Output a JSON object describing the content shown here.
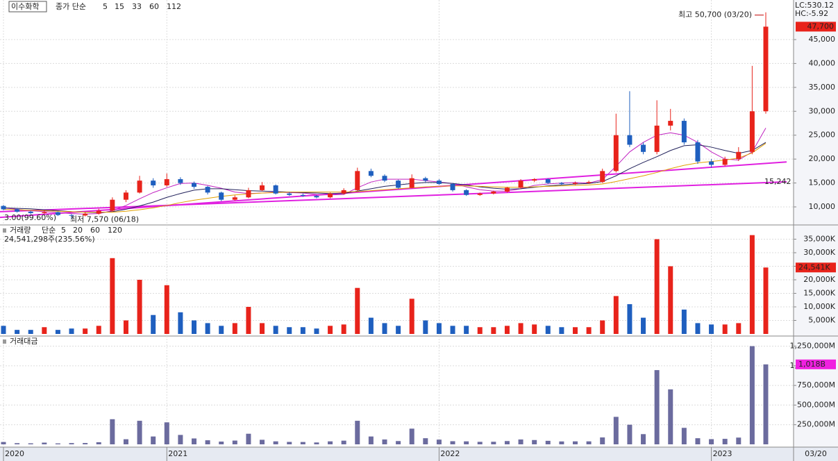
{
  "chart_data": [
    {
      "type": "candlestick",
      "title": "이수화학",
      "legend_prefix": "종가 단순",
      "ma_legend": [
        {
          "label": "5",
          "color": "#c020c0"
        },
        {
          "label": "15",
          "color": "#20205a"
        },
        {
          "label": "33",
          "color": "#d4a000"
        },
        {
          "label": "60",
          "color": "#2e8b2e"
        },
        {
          "label": "112",
          "color": "#888888"
        }
      ],
      "up_color": "#e8231b",
      "down_color": "#1f5fbf",
      "open": [
        10200,
        9500,
        9000,
        8700,
        8900,
        8300,
        8200,
        8600,
        9200,
        11500,
        13000,
        15500,
        14500,
        15800,
        15000,
        14200,
        13000,
        11500,
        12000,
        13500,
        14500,
        12800,
        12500,
        12300,
        12000,
        12800,
        13500,
        17500,
        16500,
        15500,
        14000,
        16000,
        15500,
        14800,
        13500,
        12500,
        12800,
        13200,
        14000,
        15500,
        15800,
        15000,
        14800,
        15000,
        15200,
        17500,
        25000,
        23000,
        21500,
        27000,
        28000,
        23500,
        19500,
        18800,
        20000,
        21500,
        30000
      ],
      "high": [
        10400,
        9700,
        9200,
        9300,
        9000,
        8500,
        8900,
        9600,
        12000,
        13500,
        16500,
        16000,
        17000,
        16200,
        15300,
        14400,
        13200,
        12400,
        14000,
        15200,
        14700,
        13100,
        12800,
        12500,
        13000,
        13900,
        18200,
        18000,
        16800,
        15700,
        16800,
        16300,
        15800,
        15000,
        13700,
        13000,
        13400,
        14200,
        15800,
        16000,
        16000,
        15200,
        15300,
        15500,
        18000,
        29500,
        34200,
        23500,
        32300,
        30500,
        28500,
        24000,
        20000,
        20500,
        22500,
        39500,
        50700
      ],
      "low": [
        9300,
        8800,
        8500,
        8500,
        8100,
        7570,
        8000,
        8400,
        9000,
        11000,
        12800,
        14000,
        14200,
        14600,
        13800,
        12600,
        11200,
        11300,
        11800,
        13300,
        12600,
        12300,
        12100,
        11800,
        11800,
        12600,
        13300,
        16200,
        15200,
        13800,
        13900,
        15200,
        14600,
        13200,
        12300,
        12300,
        12600,
        13000,
        13800,
        15200,
        14800,
        14600,
        14600,
        14800,
        15000,
        17200,
        22500,
        21000,
        21000,
        26000,
        23000,
        19000,
        18200,
        18500,
        19600,
        21000,
        29500
      ],
      "close": [
        9500,
        9000,
        8700,
        8900,
        8300,
        8200,
        8600,
        9200,
        11500,
        13000,
        15500,
        14500,
        15800,
        15000,
        14200,
        13000,
        11500,
        12000,
        13500,
        14500,
        12800,
        12500,
        12300,
        12000,
        12800,
        13500,
        17500,
        16500,
        15500,
        14000,
        16000,
        15500,
        14800,
        13500,
        12500,
        12800,
        13200,
        14000,
        15500,
        15800,
        15000,
        14800,
        15000,
        15200,
        17500,
        25000,
        23000,
        21500,
        27000,
        28000,
        23500,
        19500,
        18800,
        20000,
        21500,
        30000,
        47700
      ],
      "series": [
        {
          "name": "5",
          "color": "#c020c0",
          "values": [
            9800,
            9500,
            9200,
            9000,
            8800,
            8600,
            8500,
            8600,
            9200,
            10300,
            11700,
            13000,
            14000,
            14900,
            15000,
            14500,
            13900,
            13100,
            12800,
            12900,
            13100,
            13000,
            12900,
            12600,
            12500,
            12600,
            14000,
            15200,
            15800,
            15800,
            15800,
            15500,
            15200,
            14900,
            14200,
            13600,
            13300,
            13300,
            13800,
            14500,
            14800,
            15000,
            15100,
            15000,
            15700,
            18500,
            21500,
            23500,
            25000,
            25500,
            25000,
            23500,
            21500,
            20000,
            19800,
            21500,
            26500
          ]
        },
        {
          "name": "15",
          "color": "#20205a",
          "values": [
            9800,
            9700,
            9600,
            9400,
            9200,
            9000,
            8900,
            8800,
            9000,
            9500,
            10200,
            11000,
            12000,
            12800,
            13500,
            13800,
            13800,
            13600,
            13400,
            13300,
            13200,
            13100,
            13000,
            12900,
            12800,
            12800,
            13300,
            13800,
            14300,
            14600,
            14900,
            15100,
            15100,
            14900,
            14600,
            14200,
            13900,
            13700,
            13800,
            14100,
            14400,
            14600,
            14800,
            14900,
            15300,
            16500,
            18000,
            19300,
            20500,
            21800,
            22800,
            23000,
            22500,
            21800,
            21200,
            21800,
            23500
          ]
        },
        {
          "name": "33",
          "color": "#e0a000",
          "values": [
            9500,
            9400,
            9300,
            9200,
            9100,
            9000,
            8900,
            8900,
            8900,
            9100,
            9400,
            9800,
            10300,
            10900,
            11400,
            11800,
            12200,
            12500,
            12700,
            12900,
            13000,
            13100,
            13100,
            13100,
            13100,
            13100,
            13200,
            13400,
            13600,
            13800,
            14000,
            14200,
            14300,
            14400,
            14400,
            14300,
            14200,
            14100,
            14100,
            14200,
            14300,
            14400,
            14500,
            14600,
            14800,
            15300,
            15900,
            16500,
            17200,
            18000,
            18700,
            19200,
            19500,
            19800,
            20200,
            21300,
            23300
          ]
        }
      ],
      "trendlines": [
        {
          "color": "#e020e0",
          "values": [
            7800,
            19400
          ]
        },
        {
          "color": "#e020e0",
          "values": [
            9000,
            15242
          ],
          "end_label": "15,242"
        }
      ],
      "high_annotation": "최고 50,700 (03/20)",
      "low_annotation": "최저 7,570 (06/18)",
      "left_annotation": "3.00(99.60%)",
      "current": {
        "value": 47700,
        "label": "47,700"
      },
      "lc": "LC:530.12",
      "hc": "HC:-5.92",
      "ylim": [
        6370,
        52550
      ],
      "yticks": [
        {
          "value": 10000,
          "label": "10,000"
        },
        {
          "value": 15000,
          "label": "15,000"
        },
        {
          "value": 20000,
          "label": "20,000"
        },
        {
          "value": 25000,
          "label": "25,000"
        },
        {
          "value": 30000,
          "label": "30,000"
        },
        {
          "value": 35000,
          "label": "35,000"
        },
        {
          "value": 40000,
          "label": "40,000"
        },
        {
          "value": 45000,
          "label": "45,000"
        }
      ],
      "grid": true
    },
    {
      "type": "bar",
      "title": "거래량",
      "legend_prefix": "단순",
      "ma_legend": [
        {
          "label": "5",
          "color": "#c020c0"
        },
        {
          "label": "20",
          "color": "#d4a000"
        },
        {
          "label": "60",
          "color": "#2e8b2e"
        },
        {
          "label": "120",
          "color": "#888888"
        }
      ],
      "subtitle": "24,541,298주(235.56%)",
      "values": [
        3000,
        1500,
        1500,
        2500,
        1500,
        2000,
        2000,
        3000,
        28000,
        5000,
        20000,
        7000,
        18000,
        8000,
        5000,
        4000,
        3000,
        4000,
        10000,
        4000,
        3000,
        2500,
        2500,
        2000,
        3000,
        3500,
        17000,
        6000,
        4000,
        3000,
        13000,
        5000,
        4000,
        3000,
        3000,
        2500,
        2500,
        3000,
        4000,
        3500,
        3000,
        2500,
        2500,
        2500,
        5000,
        14000,
        11000,
        6000,
        35000,
        25000,
        9000,
        4000,
        3500,
        3500,
        4000,
        36500,
        24541
      ],
      "current": {
        "value": 24541,
        "label": "24,541K"
      },
      "ylim": [
        0,
        40000
      ],
      "yticks": [
        {
          "value": 5000,
          "label": "5,000K"
        },
        {
          "value": 10000,
          "label": "10,000K"
        },
        {
          "value": 15000,
          "label": "15,000K"
        },
        {
          "value": 20000,
          "label": "20,000K"
        },
        {
          "value": 25000,
          "label": "25,000K"
        },
        {
          "value": 30000,
          "label": "30,000K"
        },
        {
          "value": 35000,
          "label": "35,000K"
        }
      ],
      "grid": true
    },
    {
      "type": "bar",
      "title": "거래대금",
      "color": "#6b6b9e",
      "categories": [
        "2020",
        null,
        null,
        null,
        null,
        null,
        null,
        null,
        null,
        null,
        null,
        null,
        "2021",
        null,
        null,
        null,
        null,
        null,
        null,
        null,
        null,
        null,
        null,
        null,
        null,
        null,
        null,
        null,
        null,
        null,
        null,
        null,
        "2022",
        null,
        null,
        null,
        null,
        null,
        null,
        null,
        null,
        null,
        null,
        null,
        null,
        null,
        null,
        null,
        null,
        null,
        null,
        null,
        "2023",
        null,
        null,
        null,
        null
      ],
      "end_label": "03/20",
      "values": [
        30000,
        15000,
        13000,
        22000,
        12000,
        16000,
        17000,
        27000,
        320000,
        65000,
        300000,
        100000,
        280000,
        120000,
        75000,
        52000,
        35000,
        48000,
        135000,
        58000,
        38000,
        31000,
        30000,
        24000,
        38000,
        47000,
        300000,
        100000,
        62000,
        42000,
        200000,
        78000,
        60000,
        40000,
        38000,
        32000,
        33000,
        42000,
        62000,
        55000,
        45000,
        37000,
        38000,
        38000,
        88000,
        350000,
        250000,
        130000,
        945000,
        700000,
        210000,
        78000,
        66000,
        70000,
        86000,
        1250000,
        1018000
      ],
      "current": {
        "value": 1018000,
        "label": "1,018B"
      },
      "ylim": [
        0,
        1370000
      ],
      "yticks": [
        {
          "value": 250000,
          "label": "250,000M"
        },
        {
          "value": 500000,
          "label": "500,000M"
        },
        {
          "value": 750000,
          "label": "750,000M"
        },
        {
          "value": 1000000,
          "label": "1,000,000M"
        },
        {
          "value": 1250000,
          "label": "1,250,000M"
        }
      ],
      "grid": true
    }
  ]
}
